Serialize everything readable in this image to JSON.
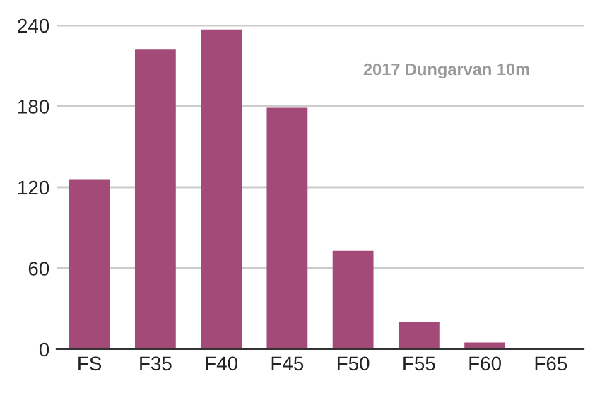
{
  "chart_data": {
    "type": "bar",
    "title": "2017 Dungarvan 10m",
    "categories": [
      "FS",
      "F35",
      "F40",
      "F45",
      "F50",
      "F55",
      "F60",
      "F65"
    ],
    "values": [
      126,
      222,
      237,
      179,
      73,
      20,
      5,
      1
    ],
    "color": "#a44a78",
    "ylim": [
      0,
      240
    ],
    "yticks": [
      0,
      60,
      120,
      180,
      240
    ],
    "grid": "y",
    "legend": false
  }
}
